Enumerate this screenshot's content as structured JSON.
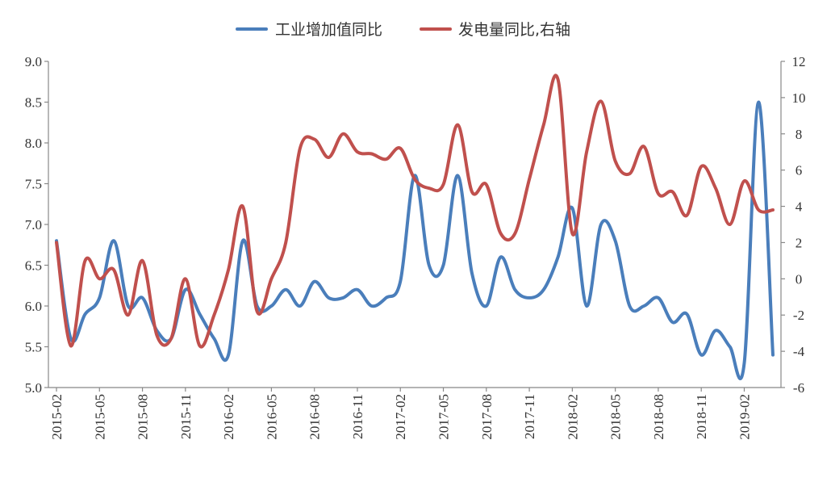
{
  "chart_data": {
    "type": "line",
    "x": [
      "2015-02",
      "2015-03",
      "2015-04",
      "2015-05",
      "2015-06",
      "2015-07",
      "2015-08",
      "2015-09",
      "2015-10",
      "2015-11",
      "2015-12",
      "2016-01",
      "2016-02",
      "2016-03",
      "2016-04",
      "2016-05",
      "2016-06",
      "2016-07",
      "2016-08",
      "2016-09",
      "2016-10",
      "2016-11",
      "2016-12",
      "2017-01",
      "2017-02",
      "2017-03",
      "2017-04",
      "2017-05",
      "2017-06",
      "2017-07",
      "2017-08",
      "2017-09",
      "2017-10",
      "2017-11",
      "2017-12",
      "2018-01",
      "2018-02",
      "2018-03",
      "2018-04",
      "2018-05",
      "2018-06",
      "2018-07",
      "2018-08",
      "2018-09",
      "2018-10",
      "2018-11",
      "2018-12",
      "2019-01",
      "2019-02",
      "2019-03",
      "2019-04"
    ],
    "x_tick_labels": [
      "2015-02",
      "2015-05",
      "2015-08",
      "2015-11",
      "2016-02",
      "2016-05",
      "2016-08",
      "2016-11",
      "2017-02",
      "2017-05",
      "2017-08",
      "2017-11",
      "2018-02",
      "2018-05",
      "2018-08",
      "2018-11",
      "2019-02"
    ],
    "y_left": {
      "range": [
        5.0,
        9.0
      ],
      "ticks": [
        "5.0",
        "5.5",
        "6.0",
        "6.5",
        "7.0",
        "7.5",
        "8.0",
        "8.5",
        "9.0"
      ]
    },
    "y_right": {
      "range": [
        -6,
        12
      ],
      "ticks": [
        "-6",
        "-4",
        "-2",
        "0",
        "2",
        "4",
        "6",
        "8",
        "10",
        "12"
      ]
    },
    "series": [
      {
        "name": "工业增加值同比",
        "axis": "left",
        "color": "#4a7ebb",
        "values": [
          6.8,
          5.6,
          5.9,
          6.1,
          6.8,
          6.0,
          6.1,
          5.7,
          5.6,
          6.2,
          5.9,
          5.6,
          5.4,
          6.8,
          6.0,
          6.0,
          6.2,
          6.0,
          6.3,
          6.1,
          6.1,
          6.2,
          6.0,
          6.1,
          6.3,
          7.6,
          6.5,
          6.5,
          7.6,
          6.4,
          6.0,
          6.6,
          6.2,
          6.1,
          6.2,
          6.6,
          7.2,
          6.0,
          7.0,
          6.8,
          6.0,
          6.0,
          6.1,
          5.8,
          5.9,
          5.4,
          5.7,
          5.5,
          5.3,
          8.5,
          5.4
        ]
      },
      {
        "name": "发电量同比,右轴",
        "axis": "right",
        "color": "#c0504d",
        "values": [
          2.0,
          -3.7,
          1.0,
          0.0,
          0.5,
          -2.0,
          1.0,
          -3.1,
          -3.3,
          0.0,
          -3.7,
          -2.0,
          0.5,
          4.0,
          -1.8,
          0.0,
          2.0,
          7.2,
          7.7,
          6.7,
          8.0,
          7.0,
          6.9,
          6.6,
          7.2,
          5.5,
          5.0,
          5.2,
          8.5,
          4.8,
          5.2,
          2.5,
          2.5,
          5.5,
          8.5,
          11.0,
          2.5,
          7.0,
          9.8,
          6.5,
          5.8,
          7.3,
          4.7,
          4.8,
          3.5,
          6.2,
          5.0,
          3.0,
          5.4,
          3.8,
          3.8
        ]
      }
    ]
  }
}
